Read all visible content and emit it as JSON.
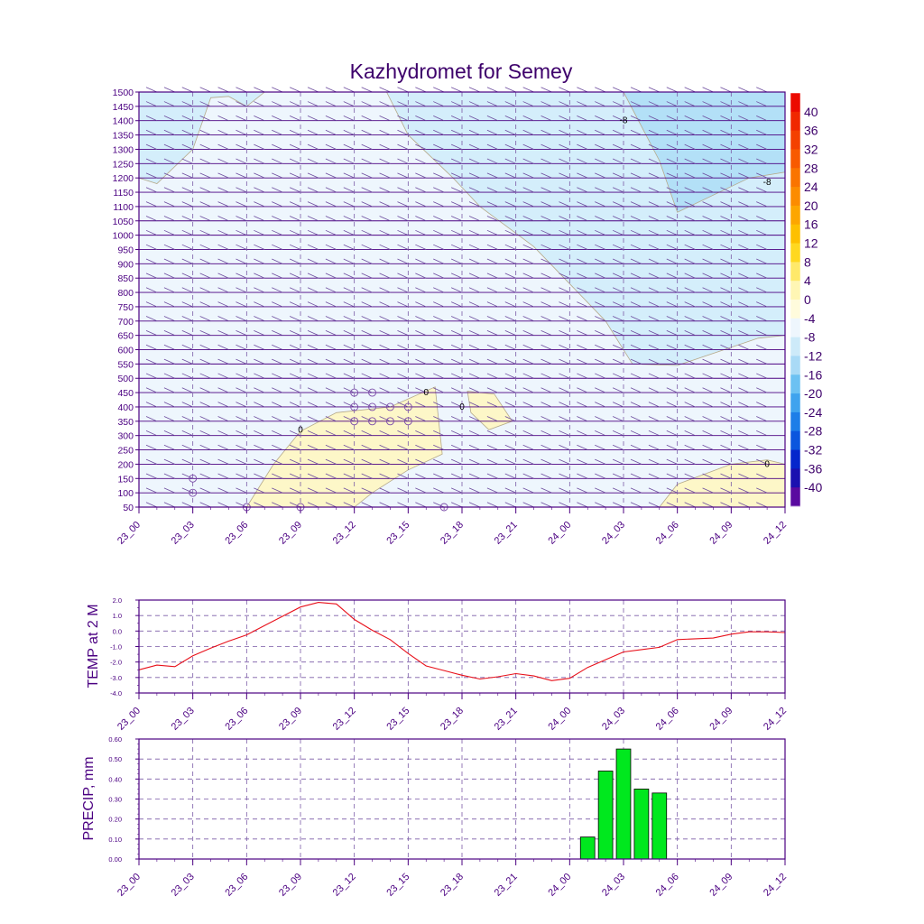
{
  "colors": {
    "frame": "#4b0082",
    "text": "#3d006b",
    "grid": "#7a5aa6",
    "temp_line": "#e8101a",
    "precip_bar": "#00e81e",
    "barb": "#6d4c9e",
    "contour": "#b5a98a"
  },
  "chart_data": [
    {
      "type": "heatmap",
      "title": "Kazhydromet for Semey",
      "x_ticks": [
        "23_00",
        "23_03",
        "23_06",
        "23_09",
        "23_12",
        "23_15",
        "23_18",
        "23_21",
        "24_00",
        "24_03",
        "24_06",
        "24_09",
        "24_12"
      ],
      "y_ticks": [
        "50",
        "100",
        "150",
        "200",
        "250",
        "300",
        "350",
        "400",
        "450",
        "500",
        "550",
        "600",
        "650",
        "700",
        "750",
        "800",
        "850",
        "900",
        "950",
        "1000",
        "1050",
        "1100",
        "1150",
        "1200",
        "1250",
        "1300",
        "1350",
        "1400",
        "1450",
        "1500"
      ],
      "xlim": [
        0,
        36
      ],
      "ylim": [
        50,
        1500
      ],
      "grid": true,
      "colorbar": {
        "labels": [
          "40",
          "36",
          "32",
          "28",
          "24",
          "20",
          "16",
          "12",
          "8",
          "4",
          "0",
          "-4",
          "-8",
          "-12",
          "-16",
          "-20",
          "-24",
          "-28",
          "-32",
          "-36",
          "-40"
        ],
        "colors": [
          "#ec0a00",
          "#f02800",
          "#f44000",
          "#f85a00",
          "#fa7400",
          "#fc8c00",
          "#fda600",
          "#fec000",
          "#ffd820",
          "#ffe96a",
          "#fff6b4",
          "#fffbdc",
          "#eef6fd",
          "#cdeaf9",
          "#a9daf6",
          "#6cc1f2",
          "#3fa3ee",
          "#1d7ee8",
          "#0b56de",
          "#0526cc",
          "#1a10b0",
          "#5a0aa0"
        ]
      },
      "contour_labels": [
        {
          "x": 9,
          "y": 320,
          "text": "0"
        },
        {
          "x": 16,
          "y": 450,
          "text": "0"
        },
        {
          "x": 18,
          "y": 400,
          "text": "0"
        },
        {
          "x": 35,
          "y": 200,
          "text": "0"
        },
        {
          "x": 27,
          "y": 1400,
          "text": "-8"
        },
        {
          "x": 35,
          "y": 1185,
          "text": "-8"
        }
      ],
      "regions": [
        {
          "label": "-4 to -8 (upper left)",
          "fill": "#d4eefb",
          "points": [
            [
              0,
              1500
            ],
            [
              7,
              1500
            ],
            [
              6,
              1450
            ],
            [
              5,
              1485
            ],
            [
              4,
              1480
            ],
            [
              3,
              1300
            ],
            [
              1,
              1180
            ],
            [
              0,
              1200
            ]
          ]
        },
        {
          "label": "-4 to -8 (upper right)",
          "fill": "#d4eefb",
          "points": [
            [
              13.8,
              1500
            ],
            [
              36,
              1500
            ],
            [
              36,
              650
            ],
            [
              34.5,
              640
            ],
            [
              30,
              545
            ],
            [
              27.5,
              550
            ],
            [
              26,
              700
            ],
            [
              22,
              960
            ],
            [
              19,
              1100
            ],
            [
              17.5,
              1200
            ],
            [
              15,
              1350
            ]
          ]
        },
        {
          "label": "below -8",
          "fill": "#b3e0f7",
          "points": [
            [
              27,
              1500
            ],
            [
              36,
              1500
            ],
            [
              36,
              1220
            ],
            [
              34,
              1200
            ],
            [
              30,
              1080
            ],
            [
              29,
              1260
            ]
          ]
        },
        {
          "label": "above 0 (left)",
          "fill": "#fdf7c8",
          "points": [
            [
              6,
              50
            ],
            [
              7.5,
              200
            ],
            [
              9,
              315
            ],
            [
              11,
              380
            ],
            [
              14,
              400
            ],
            [
              16.5,
              470
            ],
            [
              16.9,
              235
            ],
            [
              15,
              180
            ],
            [
              13,
              100
            ],
            [
              12,
              50
            ]
          ]
        },
        {
          "label": "above 0 (middle)",
          "fill": "#fdf7c8",
          "points": [
            [
              18.3,
              455
            ],
            [
              19.8,
              445
            ],
            [
              20.8,
              350
            ],
            [
              19.5,
              320
            ],
            [
              18.5,
              380
            ]
          ]
        },
        {
          "label": "above 0 (lower right)",
          "fill": "#fdf7c8",
          "points": [
            [
              29,
              50
            ],
            [
              30,
              130
            ],
            [
              33,
              200
            ],
            [
              35,
              215
            ],
            [
              36,
              200
            ],
            [
              36,
              50
            ]
          ]
        }
      ],
      "cloud_markers": [
        {
          "x": 3,
          "y": 100
        },
        {
          "x": 3,
          "y": 150
        },
        {
          "x": 6,
          "y": 50
        },
        {
          "x": 9,
          "y": 50
        },
        {
          "x": 12,
          "y": 450
        },
        {
          "x": 13,
          "y": 450
        },
        {
          "x": 12,
          "y": 400
        },
        {
          "x": 13,
          "y": 400
        },
        {
          "x": 14,
          "y": 400
        },
        {
          "x": 15,
          "y": 400
        },
        {
          "x": 12,
          "y": 350
        },
        {
          "x": 13,
          "y": 350
        },
        {
          "x": 14,
          "y": 350
        },
        {
          "x": 15,
          "y": 350
        },
        {
          "x": 17,
          "y": 50
        }
      ]
    },
    {
      "type": "line",
      "title": "",
      "ylabel": "TEMP at 2 M",
      "x_ticks": [
        "23_00",
        "23_03",
        "23_06",
        "23_09",
        "23_12",
        "23_15",
        "23_18",
        "23_21",
        "24_00",
        "24_03",
        "24_06",
        "24_09",
        "24_12"
      ],
      "y_ticks": [
        "2.0",
        "1.0",
        "0.0",
        "-1.0",
        "-2.0",
        "-3.0",
        "-4.0"
      ],
      "xlim": [
        0,
        36
      ],
      "ylim": [
        -4,
        2
      ],
      "grid": true,
      "series": [
        {
          "x": [
            0,
            1,
            2,
            3,
            4,
            5,
            6,
            7,
            8,
            9,
            10,
            11,
            12,
            13,
            14,
            15,
            16,
            17,
            18,
            19,
            20,
            21,
            22,
            23,
            24,
            25,
            26,
            27,
            28,
            29,
            30,
            31,
            32,
            33,
            34,
            35,
            36
          ],
          "values": [
            -2.5,
            -2.2,
            -2.3,
            -1.6,
            -1.1,
            -0.65,
            -0.25,
            0.35,
            0.95,
            1.55,
            1.85,
            1.75,
            0.75,
            0.05,
            -0.55,
            -1.45,
            -2.25,
            -2.55,
            -2.85,
            -3.1,
            -2.95,
            -2.75,
            -2.9,
            -3.2,
            -3.05,
            -2.35,
            -1.85,
            -1.35,
            -1.2,
            -1.05,
            -0.55,
            -0.5,
            -0.45,
            -0.2,
            -0.05,
            -0.05,
            -0.1
          ]
        }
      ]
    },
    {
      "type": "bar",
      "title": "",
      "ylabel": "PRECIP, mm",
      "x_ticks": [
        "23_00",
        "23_03",
        "23_06",
        "23_09",
        "23_12",
        "23_15",
        "23_18",
        "23_21",
        "24_00",
        "24_03",
        "24_06",
        "24_09",
        "24_12"
      ],
      "y_ticks": [
        "0.60",
        "0.50",
        "0.40",
        "0.30",
        "0.20",
        "0.10",
        "0.00"
      ],
      "xlim": [
        0,
        36
      ],
      "ylim": [
        0,
        0.6
      ],
      "grid": true,
      "x": [
        25,
        26,
        27,
        28,
        29
      ],
      "values": [
        0.11,
        0.44,
        0.55,
        0.35,
        0.33
      ]
    }
  ]
}
